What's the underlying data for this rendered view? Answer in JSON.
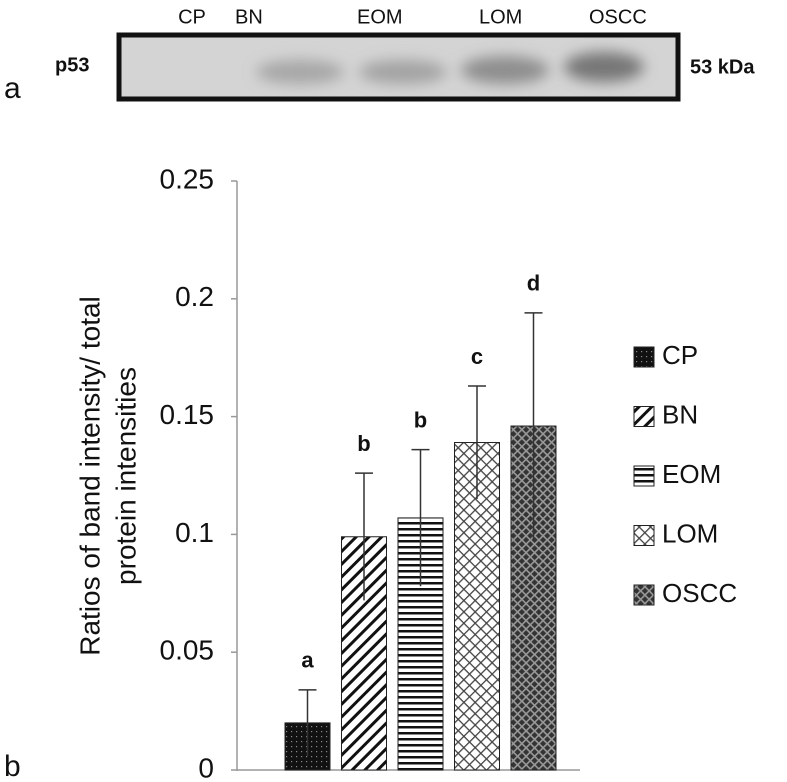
{
  "chart_data": {
    "type": "bar",
    "panels": [
      "a",
      "b"
    ],
    "blot": {
      "protein": "p53",
      "size": "53 kDa",
      "lanes": [
        "CP",
        "BN",
        "EOM",
        "LOM",
        "OSCC"
      ]
    },
    "ylabel": [
      "Ratios of band intensity/ total",
      "protein intensities"
    ],
    "categories": [
      "CP",
      "BN",
      "EOM",
      "LOM",
      "OSCC"
    ],
    "values": [
      0.02,
      0.099,
      0.107,
      0.139,
      0.146
    ],
    "errors": [
      0.014,
      0.027,
      0.029,
      0.024,
      0.048
    ],
    "annotations": [
      "a",
      "b",
      "b",
      "c",
      "d"
    ],
    "ylim": [
      0,
      0.25
    ],
    "yticks": [
      0,
      0.05,
      0.1,
      0.15,
      0.2,
      0.25
    ]
  }
}
